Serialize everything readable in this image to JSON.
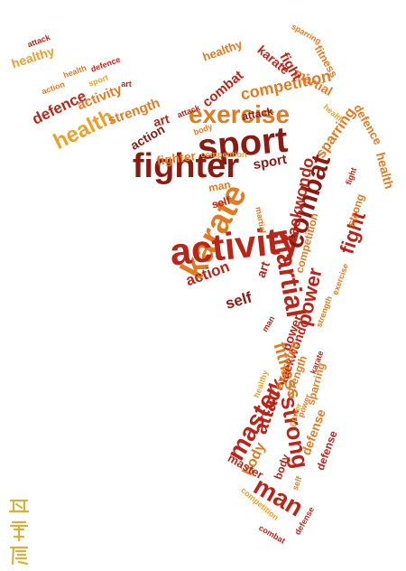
{
  "palette": {
    "dark_red": "#8a1b12",
    "red": "#b8261a",
    "orange_red": "#d4471c",
    "orange": "#e07b24",
    "gold": "#e8a12a",
    "seal_gold": "#d7b13a"
  },
  "words": [
    "exercise",
    "sport",
    "fighter",
    "karate",
    "activity",
    "martial",
    "combat",
    "taekwondo",
    "power",
    "master",
    "strong",
    "man",
    "fight",
    "defense",
    "health",
    "defence",
    "healthy",
    "strength",
    "activity",
    "art",
    "competition",
    "attack",
    "action",
    "fitness",
    "self",
    "body",
    "sparring",
    "martial",
    "combat",
    "fighter",
    "karate",
    "sport",
    "action",
    "power",
    "defence",
    "attack",
    "fitness",
    "taekwondo",
    "exercise",
    "strength",
    "master",
    "man",
    "art",
    "self",
    "body",
    "health",
    "competition",
    "fight",
    "sparring",
    "strong",
    "healthy",
    "defense"
  ],
  "seal": {
    "label": "calligraphy seal"
  }
}
